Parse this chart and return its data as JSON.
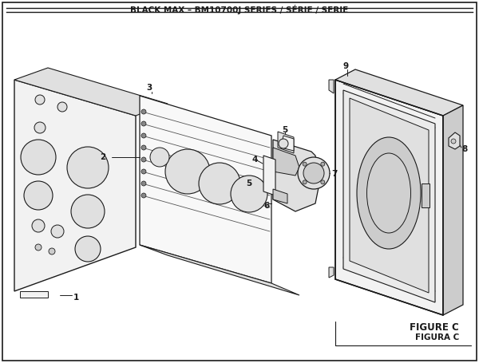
{
  "title": "BLACK MAX – BM10700J SERIES / SÉRIE / SERIE",
  "figure_label": "FIGURE C",
  "figura_label": "FIGURA C",
  "bg_color": "#ffffff",
  "border_color": "#000000",
  "line_color": "#1a1a1a",
  "fill_light": "#f2f2f2",
  "fill_mid": "#e0e0e0",
  "fill_dark": "#cccccc",
  "figsize": [
    6.0,
    4.55
  ],
  "dpi": 100
}
